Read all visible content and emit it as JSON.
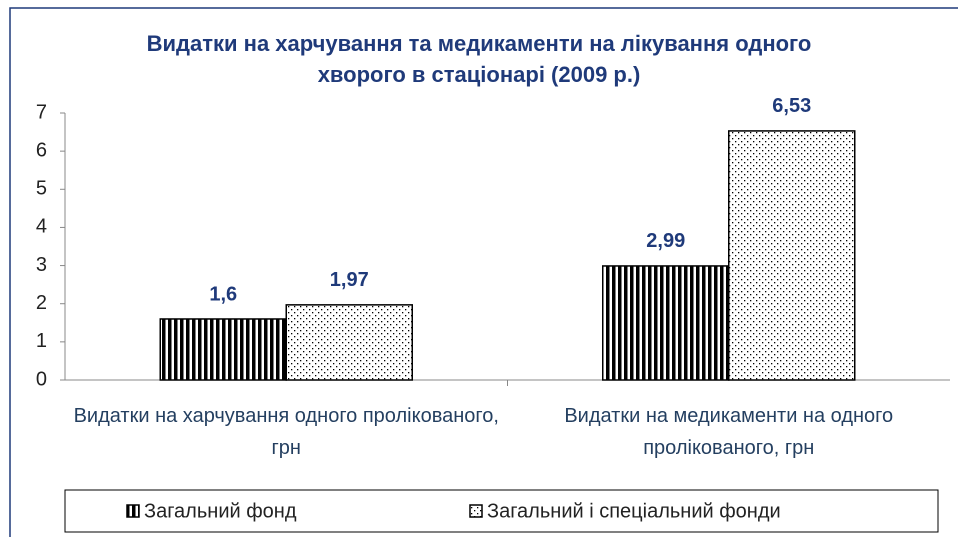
{
  "chart_data": {
    "type": "bar",
    "title": "Видатки на харчування та медикаменти на лікування одного хворого в стаціонарі (2009 р.)",
    "categories": [
      "Видатки на харчування одного пролікованого, грн",
      "Видатки на медикаменти на одного пролікованого, грн"
    ],
    "series": [
      {
        "name": "Загальний фонд",
        "color": "#000000",
        "pattern": "vertical-stripes",
        "values": [
          1.6,
          2.99
        ],
        "value_labels": [
          "1,6",
          "2,99"
        ]
      },
      {
        "name": "Загальний і спеціальний фонди",
        "color": "#000000",
        "pattern": "dots",
        "values": [
          1.97,
          6.53
        ],
        "value_labels": [
          "1,97",
          "6,53"
        ]
      }
    ],
    "ylim": [
      0,
      7
    ],
    "yticks": [
      0,
      1,
      2,
      3,
      4,
      5,
      6,
      7
    ],
    "legend": "bottom"
  }
}
